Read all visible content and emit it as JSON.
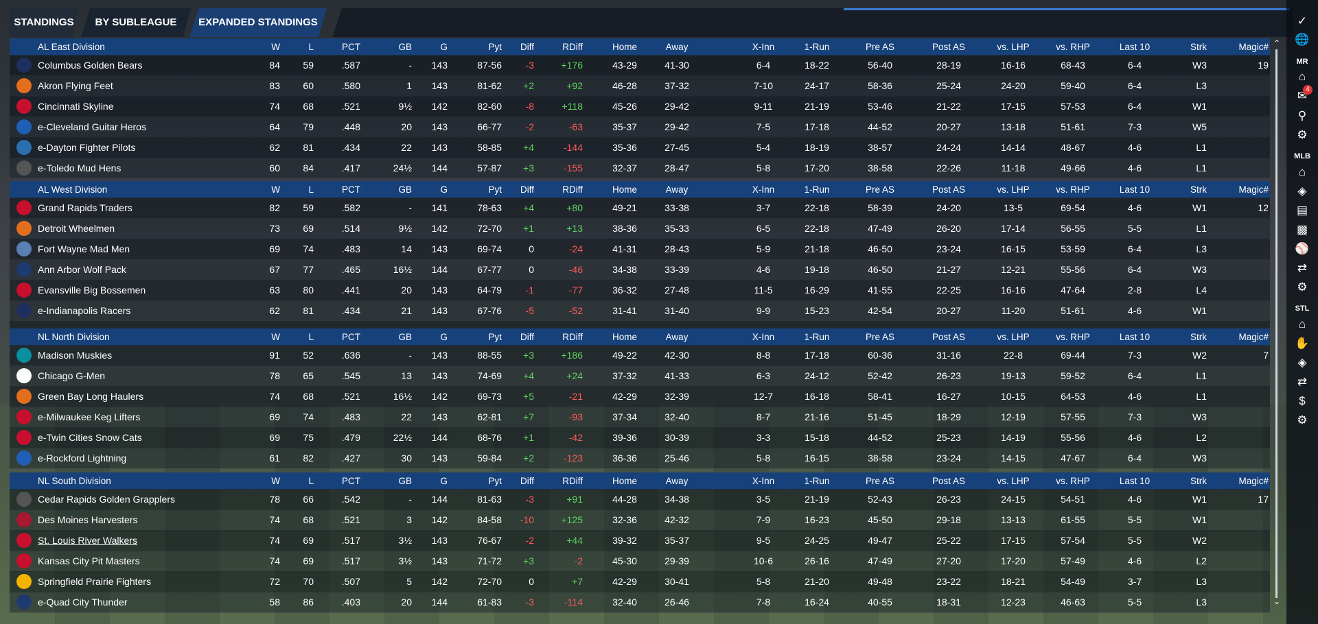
{
  "tabs": [
    {
      "label": "STANDINGS"
    },
    {
      "label": "BY SUBLEAGUE"
    },
    {
      "label": "EXPANDED STANDINGS"
    }
  ],
  "columns": [
    "W",
    "L",
    "PCT",
    "GB",
    "G",
    "Pyt",
    "Diff",
    "RDiff",
    "Home",
    "Away",
    "X-Inn",
    "1-Run",
    "Pre AS",
    "Post AS",
    "vs. LHP",
    "vs. RHP",
    "Last 10",
    "Strk",
    "Magic#"
  ],
  "divisions": [
    {
      "name": "AL East Division",
      "teams": [
        {
          "name": "Columbus Golden Bears",
          "logo_color": "#1e2f5e",
          "w": "84",
          "l": "59",
          "pct": ".587",
          "gb": "-",
          "g": "143",
          "pyt": "87-56",
          "diff": "-3",
          "rdiff": "+176",
          "home": "43-29",
          "away": "41-30",
          "xinn": "6-4",
          "onerun": "18-22",
          "preas": "56-40",
          "postas": "28-19",
          "lhp": "16-16",
          "rhp": "68-43",
          "last10": "6-4",
          "strk": "W3",
          "magic": "19"
        },
        {
          "name": "Akron  Flying Feet",
          "logo_color": "#e36f1e",
          "w": "83",
          "l": "60",
          "pct": ".580",
          "gb": "1",
          "g": "143",
          "pyt": "81-62",
          "diff": "+2",
          "rdiff": "+92",
          "home": "46-28",
          "away": "37-32",
          "xinn": "7-10",
          "onerun": "24-17",
          "preas": "58-36",
          "postas": "25-24",
          "lhp": "24-20",
          "rhp": "59-40",
          "last10": "6-4",
          "strk": "L3",
          "magic": ""
        },
        {
          "name": "Cincinnati Skyline",
          "logo_color": "#c8102e",
          "w": "74",
          "l": "68",
          "pct": ".521",
          "gb": "9½",
          "g": "142",
          "pyt": "82-60",
          "diff": "-8",
          "rdiff": "+118",
          "home": "45-26",
          "away": "29-42",
          "xinn": "9-11",
          "onerun": "21-19",
          "preas": "53-46",
          "postas": "21-22",
          "lhp": "17-15",
          "rhp": "57-53",
          "last10": "6-4",
          "strk": "W1",
          "magic": ""
        },
        {
          "name": "e-Cleveland Guitar Heros",
          "logo_color": "#1f5fb5",
          "w": "64",
          "l": "79",
          "pct": ".448",
          "gb": "20",
          "g": "143",
          "pyt": "66-77",
          "diff": "-2",
          "rdiff": "-63",
          "home": "35-37",
          "away": "29-42",
          "xinn": "7-5",
          "onerun": "17-18",
          "preas": "44-52",
          "postas": "20-27",
          "lhp": "13-18",
          "rhp": "51-61",
          "last10": "7-3",
          "strk": "W5",
          "magic": ""
        },
        {
          "name": "e-Dayton Fighter Pilots",
          "logo_color": "#2a6fb0",
          "w": "62",
          "l": "81",
          "pct": ".434",
          "gb": "22",
          "g": "143",
          "pyt": "58-85",
          "diff": "+4",
          "rdiff": "-144",
          "home": "35-36",
          "away": "27-45",
          "xinn": "5-4",
          "onerun": "18-19",
          "preas": "38-57",
          "postas": "24-24",
          "lhp": "14-14",
          "rhp": "48-67",
          "last10": "4-6",
          "strk": "L1",
          "magic": ""
        },
        {
          "name": "e-Toledo  Mud Hens",
          "logo_color": "#555555",
          "w": "60",
          "l": "84",
          "pct": ".417",
          "gb": "24½",
          "g": "144",
          "pyt": "57-87",
          "diff": "+3",
          "rdiff": "-155",
          "home": "32-37",
          "away": "28-47",
          "xinn": "5-8",
          "onerun": "17-20",
          "preas": "38-58",
          "postas": "22-26",
          "lhp": "11-18",
          "rhp": "49-66",
          "last10": "4-6",
          "strk": "L1",
          "magic": ""
        }
      ]
    },
    {
      "name": "AL West Division",
      "teams": [
        {
          "name": "Grand Rapids Traders",
          "logo_color": "#c8102e",
          "w": "82",
          "l": "59",
          "pct": ".582",
          "gb": "-",
          "g": "141",
          "pyt": "78-63",
          "diff": "+4",
          "rdiff": "+80",
          "home": "49-21",
          "away": "33-38",
          "xinn": "3-7",
          "onerun": "22-18",
          "preas": "58-39",
          "postas": "24-20",
          "lhp": "13-5",
          "rhp": "69-54",
          "last10": "4-6",
          "strk": "W1",
          "magic": "12"
        },
        {
          "name": "Detroit Wheelmen",
          "logo_color": "#e36f1e",
          "w": "73",
          "l": "69",
          "pct": ".514",
          "gb": "9½",
          "g": "142",
          "pyt": "72-70",
          "diff": "+1",
          "rdiff": "+13",
          "home": "38-36",
          "away": "35-33",
          "xinn": "6-5",
          "onerun": "22-18",
          "preas": "47-49",
          "postas": "26-20",
          "lhp": "17-14",
          "rhp": "56-55",
          "last10": "5-5",
          "strk": "L1",
          "magic": ""
        },
        {
          "name": "Fort Wayne Mad Men",
          "logo_color": "#5a7fb5",
          "w": "69",
          "l": "74",
          "pct": ".483",
          "gb": "14",
          "g": "143",
          "pyt": "69-74",
          "diff": "0",
          "rdiff": "-24",
          "home": "41-31",
          "away": "28-43",
          "xinn": "5-9",
          "onerun": "21-18",
          "preas": "46-50",
          "postas": "23-24",
          "lhp": "16-15",
          "rhp": "53-59",
          "last10": "6-4",
          "strk": "L3",
          "magic": ""
        },
        {
          "name": "Ann Arbor Wolf Pack",
          "logo_color": "#1e3a6e",
          "w": "67",
          "l": "77",
          "pct": ".465",
          "gb": "16½",
          "g": "144",
          "pyt": "67-77",
          "diff": "0",
          "rdiff": "-46",
          "home": "34-38",
          "away": "33-39",
          "xinn": "4-6",
          "onerun": "19-18",
          "preas": "46-50",
          "postas": "21-27",
          "lhp": "12-21",
          "rhp": "55-56",
          "last10": "6-4",
          "strk": "W3",
          "magic": ""
        },
        {
          "name": "Evansville Big Bossemen",
          "logo_color": "#c8102e",
          "w": "63",
          "l": "80",
          "pct": ".441",
          "gb": "20",
          "g": "143",
          "pyt": "64-79",
          "diff": "-1",
          "rdiff": "-77",
          "home": "36-32",
          "away": "27-48",
          "xinn": "11-5",
          "onerun": "16-29",
          "preas": "41-55",
          "postas": "22-25",
          "lhp": "16-16",
          "rhp": "47-64",
          "last10": "2-8",
          "strk": "L4",
          "magic": ""
        },
        {
          "name": "e-Indianapolis Racers",
          "logo_color": "#1e2f5e",
          "w": "62",
          "l": "81",
          "pct": ".434",
          "gb": "21",
          "g": "143",
          "pyt": "67-76",
          "diff": "-5",
          "rdiff": "-52",
          "home": "31-41",
          "away": "31-40",
          "xinn": "9-9",
          "onerun": "15-23",
          "preas": "42-54",
          "postas": "20-27",
          "lhp": "11-20",
          "rhp": "51-61",
          "last10": "4-6",
          "strk": "W1",
          "magic": ""
        }
      ]
    },
    {
      "name": "NL North Division",
      "teams": [
        {
          "name": "Madison Muskies",
          "logo_color": "#0a8fa0",
          "w": "91",
          "l": "52",
          "pct": ".636",
          "gb": "-",
          "g": "143",
          "pyt": "88-55",
          "diff": "+3",
          "rdiff": "+186",
          "home": "49-22",
          "away": "42-30",
          "xinn": "8-8",
          "onerun": "17-18",
          "preas": "60-36",
          "postas": "31-16",
          "lhp": "22-8",
          "rhp": "69-44",
          "last10": "7-3",
          "strk": "W2",
          "magic": "7"
        },
        {
          "name": "Chicago G-Men",
          "logo_color": "#ffffff",
          "w": "78",
          "l": "65",
          "pct": ".545",
          "gb": "13",
          "g": "143",
          "pyt": "74-69",
          "diff": "+4",
          "rdiff": "+24",
          "home": "37-32",
          "away": "41-33",
          "xinn": "6-3",
          "onerun": "24-12",
          "preas": "52-42",
          "postas": "26-23",
          "lhp": "19-13",
          "rhp": "59-52",
          "last10": "6-4",
          "strk": "L1",
          "magic": ""
        },
        {
          "name": "Green Bay  Long Haulers",
          "logo_color": "#e36f1e",
          "w": "74",
          "l": "68",
          "pct": ".521",
          "gb": "16½",
          "g": "142",
          "pyt": "69-73",
          "diff": "+5",
          "rdiff": "-21",
          "home": "42-29",
          "away": "32-39",
          "xinn": "12-7",
          "onerun": "16-18",
          "preas": "58-41",
          "postas": "16-27",
          "lhp": "10-15",
          "rhp": "64-53",
          "last10": "4-6",
          "strk": "L1",
          "magic": ""
        },
        {
          "name": "e-Milwaukee Keg Lifters",
          "logo_color": "#c8102e",
          "w": "69",
          "l": "74",
          "pct": ".483",
          "gb": "22",
          "g": "143",
          "pyt": "62-81",
          "diff": "+7",
          "rdiff": "-93",
          "home": "37-34",
          "away": "32-40",
          "xinn": "8-7",
          "onerun": "21-16",
          "preas": "51-45",
          "postas": "18-29",
          "lhp": "12-19",
          "rhp": "57-55",
          "last10": "7-3",
          "strk": "W3",
          "magic": ""
        },
        {
          "name": "e-Twin Cities Snow Cats",
          "logo_color": "#c8102e",
          "w": "69",
          "l": "75",
          "pct": ".479",
          "gb": "22½",
          "g": "144",
          "pyt": "68-76",
          "diff": "+1",
          "rdiff": "-42",
          "home": "39-36",
          "away": "30-39",
          "xinn": "3-3",
          "onerun": "15-18",
          "preas": "44-52",
          "postas": "25-23",
          "lhp": "14-19",
          "rhp": "55-56",
          "last10": "4-6",
          "strk": "L2",
          "magic": ""
        },
        {
          "name": "e-Rockford Lightning",
          "logo_color": "#1f5fb5",
          "w": "61",
          "l": "82",
          "pct": ".427",
          "gb": "30",
          "g": "143",
          "pyt": "59-84",
          "diff": "+2",
          "rdiff": "-123",
          "home": "36-36",
          "away": "25-46",
          "xinn": "5-8",
          "onerun": "16-15",
          "preas": "38-58",
          "postas": "23-24",
          "lhp": "14-15",
          "rhp": "47-67",
          "last10": "6-4",
          "strk": "W3",
          "magic": ""
        }
      ]
    },
    {
      "name": "NL South Division",
      "teams": [
        {
          "name": "Cedar Rapids Golden Grapplers",
          "logo_color": "#555555",
          "w": "78",
          "l": "66",
          "pct": ".542",
          "gb": "-",
          "g": "144",
          "pyt": "81-63",
          "diff": "-3",
          "rdiff": "+91",
          "home": "44-28",
          "away": "34-38",
          "xinn": "3-5",
          "onerun": "21-19",
          "preas": "52-43",
          "postas": "26-23",
          "lhp": "24-15",
          "rhp": "54-51",
          "last10": "4-6",
          "strk": "W1",
          "magic": "17"
        },
        {
          "name": "Des Moines   Harvesters",
          "logo_color": "#a71930",
          "w": "74",
          "l": "68",
          "pct": ".521",
          "gb": "3",
          "g": "142",
          "pyt": "84-58",
          "diff": "-10",
          "rdiff": "+125",
          "home": "32-36",
          "away": "42-32",
          "xinn": "7-9",
          "onerun": "16-23",
          "preas": "45-50",
          "postas": "29-18",
          "lhp": "13-13",
          "rhp": "61-55",
          "last10": "5-5",
          "strk": "W1",
          "magic": ""
        },
        {
          "name": "St. Louis River Walkers",
          "logo_color": "#c8102e",
          "w": "74",
          "l": "69",
          "pct": ".517",
          "gb": "3½",
          "g": "143",
          "pyt": "76-67",
          "diff": "-2",
          "rdiff": "+44",
          "home": "39-32",
          "away": "35-37",
          "xinn": "9-5",
          "onerun": "24-25",
          "preas": "49-47",
          "postas": "25-22",
          "lhp": "17-15",
          "rhp": "57-54",
          "last10": "5-5",
          "strk": "W2",
          "magic": ""
        },
        {
          "name": "Kansas City Pit Masters",
          "logo_color": "#c8102e",
          "w": "74",
          "l": "69",
          "pct": ".517",
          "gb": "3½",
          "g": "143",
          "pyt": "71-72",
          "diff": "+3",
          "rdiff": "-2",
          "home": "45-30",
          "away": "29-39",
          "xinn": "10-6",
          "onerun": "26-16",
          "preas": "47-49",
          "postas": "27-20",
          "lhp": "17-20",
          "rhp": "57-49",
          "last10": "4-6",
          "strk": "L2",
          "magic": ""
        },
        {
          "name": "Springfield Prairie Fighters",
          "logo_color": "#f2b400",
          "w": "72",
          "l": "70",
          "pct": ".507",
          "gb": "5",
          "g": "142",
          "pyt": "72-70",
          "diff": "0",
          "rdiff": "+7",
          "home": "42-29",
          "away": "30-41",
          "xinn": "5-8",
          "onerun": "21-20",
          "preas": "49-48",
          "postas": "23-22",
          "lhp": "18-21",
          "rhp": "54-49",
          "last10": "3-7",
          "strk": "L3",
          "magic": ""
        },
        {
          "name": "e-Quad City Thunder",
          "logo_color": "#1e3a6e",
          "w": "58",
          "l": "86",
          "pct": ".403",
          "gb": "20",
          "g": "144",
          "pyt": "61-83",
          "diff": "-3",
          "rdiff": "-114",
          "home": "32-40",
          "away": "26-46",
          "xinn": "7-8",
          "onerun": "16-24",
          "preas": "40-55",
          "postas": "18-31",
          "lhp": "12-23",
          "rhp": "46-63",
          "last10": "5-5",
          "strk": "L3",
          "magic": ""
        }
      ]
    }
  ],
  "underlined_team": "St. Louis River Walkers",
  "rail": {
    "labels": {
      "mr": "MR",
      "mlb": "MLB",
      "stl": "STL"
    },
    "mail_badge": "4",
    "icons": [
      "check-icon",
      "globe-icon",
      "home-icon",
      "mail-icon",
      "search-icon",
      "gear-icon",
      "home-icon",
      "tag-icon",
      "news-icon",
      "chart-icon",
      "ball-icon",
      "transfer-icon",
      "gear-icon",
      "home-icon",
      "bullpen-icon",
      "tag-icon",
      "transfer-icon",
      "dollar-icon",
      "gear-icon"
    ]
  },
  "colors": {
    "positive": "#5fd45f",
    "negative": "#ff5a5a",
    "header_blue": "#17417a",
    "accent": "#3a7bd5"
  }
}
